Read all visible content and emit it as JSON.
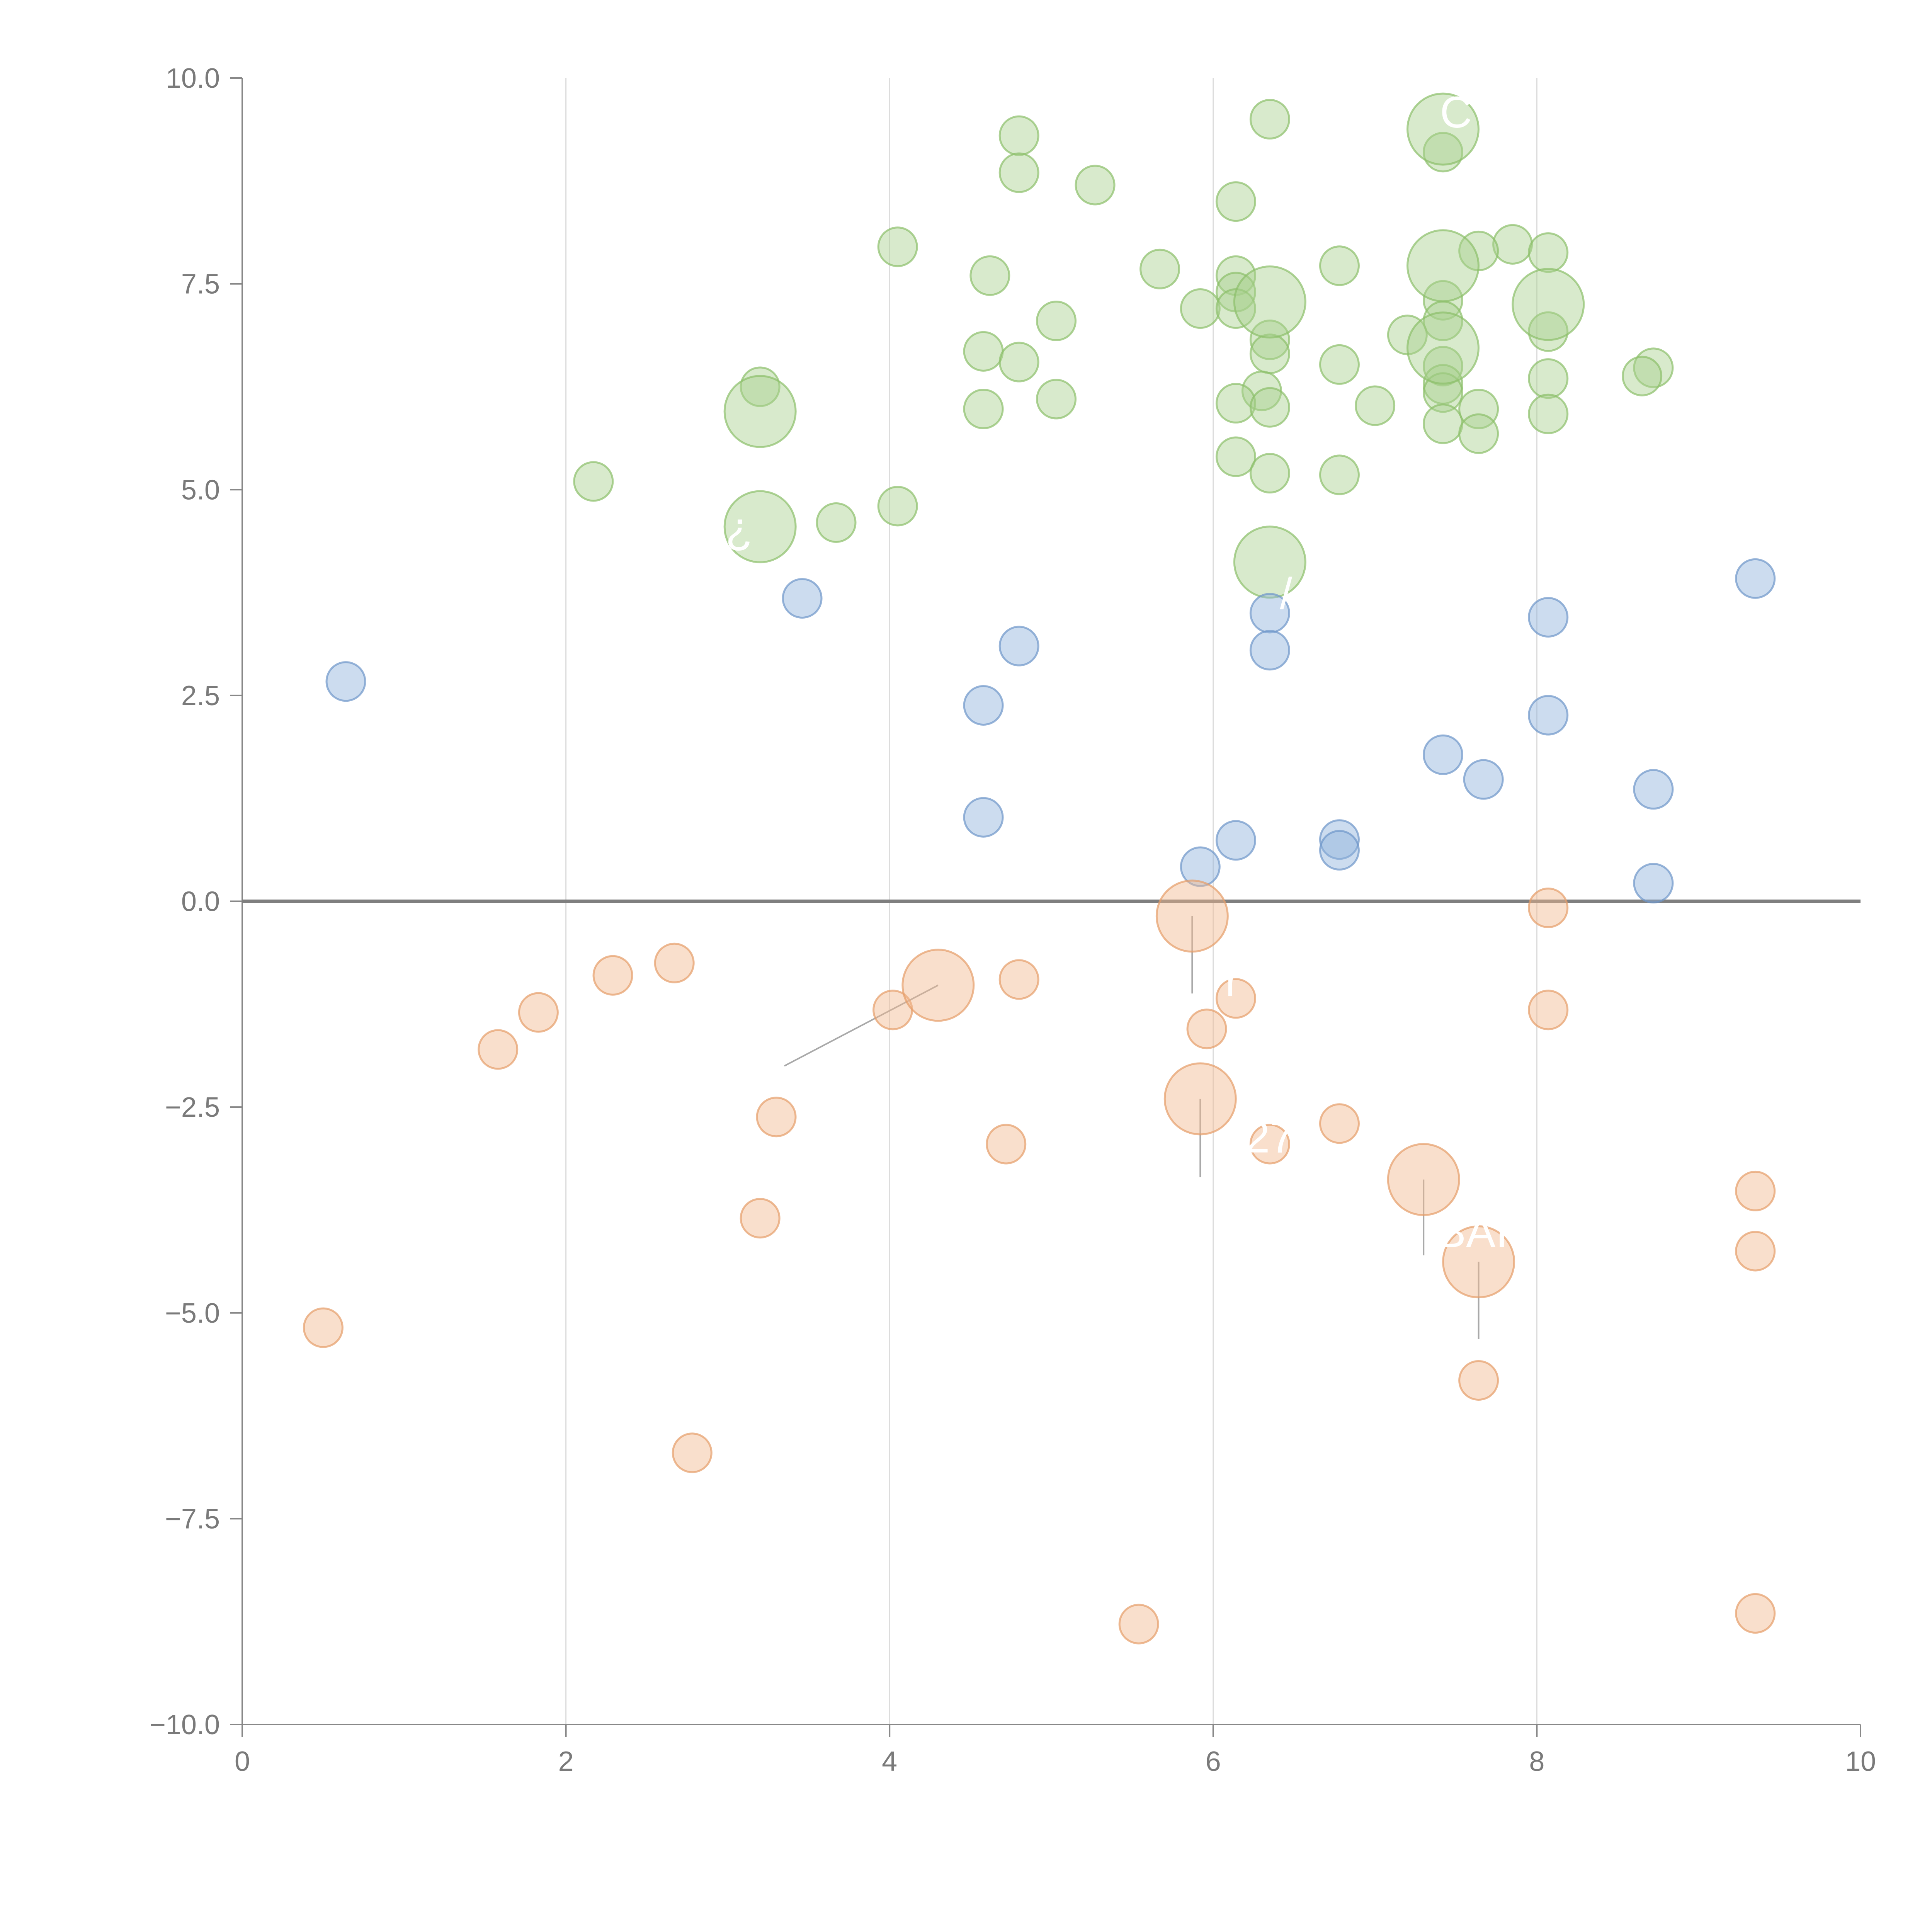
{
  "chart_data": {
    "type": "scatter",
    "title": "",
    "xlabel": "",
    "ylabel": "",
    "xlim": [
      0,
      10
    ],
    "ylim": [
      -10,
      10
    ],
    "x_ticks": [
      0,
      2,
      4,
      6,
      8,
      10
    ],
    "y_ticks": [
      10.0,
      7.5,
      5.0,
      2.5,
      0.0,
      -2.5,
      -5.0,
      -7.5,
      -10.0
    ],
    "x_tick_labels": [
      "0",
      "2",
      "4",
      "6",
      "8",
      "10"
    ],
    "y_tick_labels": [
      "10.0",
      "7.5",
      "5.0",
      "2.5",
      "0.0",
      "−2.5",
      "−5.0",
      "−7.5",
      "−10.0"
    ],
    "grid": {
      "x": true,
      "y": false
    },
    "reference_line": {
      "axis": "y",
      "value": 0
    },
    "marker_opacity": 0.45,
    "series": [
      {
        "color": "#a8d08d",
        "stroke": "#8cbf6a",
        "points": [
          {
            "x": 6.35,
            "y": 9.5
          },
          {
            "x": 7.42,
            "y": 9.1
          },
          {
            "x": 4.8,
            "y": 9.3
          },
          {
            "x": 4.8,
            "y": 8.85
          },
          {
            "x": 5.27,
            "y": 8.7
          },
          {
            "x": 6.14,
            "y": 8.5
          },
          {
            "x": 4.05,
            "y": 7.95
          },
          {
            "x": 7.85,
            "y": 7.98
          },
          {
            "x": 7.64,
            "y": 7.9
          },
          {
            "x": 8.07,
            "y": 7.88
          },
          {
            "x": 4.62,
            "y": 7.6
          },
          {
            "x": 5.67,
            "y": 7.68
          },
          {
            "x": 6.78,
            "y": 7.72
          },
          {
            "x": 6.14,
            "y": 7.6
          },
          {
            "x": 6.14,
            "y": 7.4
          },
          {
            "x": 7.42,
            "y": 7.3
          },
          {
            "x": 5.92,
            "y": 7.2
          },
          {
            "x": 6.14,
            "y": 7.2
          },
          {
            "x": 5.03,
            "y": 7.05
          },
          {
            "x": 7.42,
            "y": 7.05
          },
          {
            "x": 8.07,
            "y": 6.92
          },
          {
            "x": 7.2,
            "y": 6.88
          },
          {
            "x": 6.35,
            "y": 6.82
          },
          {
            "x": 4.58,
            "y": 6.68
          },
          {
            "x": 6.35,
            "y": 6.65
          },
          {
            "x": 4.8,
            "y": 6.55
          },
          {
            "x": 6.78,
            "y": 6.52
          },
          {
            "x": 7.42,
            "y": 6.5
          },
          {
            "x": 8.72,
            "y": 6.48
          },
          {
            "x": 8.65,
            "y": 6.38
          },
          {
            "x": 8.07,
            "y": 6.35
          },
          {
            "x": 7.42,
            "y": 6.28
          },
          {
            "x": 3.2,
            "y": 6.25
          },
          {
            "x": 7.42,
            "y": 6.18
          },
          {
            "x": 6.3,
            "y": 6.2
          },
          {
            "x": 5.03,
            "y": 6.1
          },
          {
            "x": 6.14,
            "y": 6.05
          },
          {
            "x": 7.0,
            "y": 6.02
          },
          {
            "x": 6.35,
            "y": 6.0
          },
          {
            "x": 7.64,
            "y": 5.98
          },
          {
            "x": 4.58,
            "y": 5.98
          },
          {
            "x": 8.07,
            "y": 5.92
          },
          {
            "x": 7.42,
            "y": 5.8
          },
          {
            "x": 7.64,
            "y": 5.68
          },
          {
            "x": 6.14,
            "y": 5.4
          },
          {
            "x": 6.35,
            "y": 5.2
          },
          {
            "x": 6.78,
            "y": 5.18
          },
          {
            "x": 2.17,
            "y": 5.1
          },
          {
            "x": 4.05,
            "y": 4.8
          },
          {
            "x": 3.67,
            "y": 4.6
          }
        ],
        "large_points": [
          {
            "x": 7.42,
            "y": 9.38
          },
          {
            "x": 7.42,
            "y": 7.72
          },
          {
            "x": 6.35,
            "y": 7.28
          },
          {
            "x": 8.07,
            "y": 7.25
          },
          {
            "x": 7.42,
            "y": 6.72
          },
          {
            "x": 3.2,
            "y": 5.95
          },
          {
            "x": 3.2,
            "y": 4.55
          },
          {
            "x": 6.35,
            "y": 4.12
          }
        ]
      },
      {
        "color": "#8fb1db",
        "stroke": "#6d96c9",
        "points": [
          {
            "x": 9.35,
            "y": 3.92
          },
          {
            "x": 3.46,
            "y": 3.68
          },
          {
            "x": 6.35,
            "y": 3.5
          },
          {
            "x": 8.07,
            "y": 3.45
          },
          {
            "x": 4.8,
            "y": 3.1
          },
          {
            "x": 6.35,
            "y": 3.05
          },
          {
            "x": 0.64,
            "y": 2.67
          },
          {
            "x": 4.58,
            "y": 2.38
          },
          {
            "x": 8.07,
            "y": 2.26
          },
          {
            "x": 7.42,
            "y": 1.78
          },
          {
            "x": 7.67,
            "y": 1.48
          },
          {
            "x": 8.72,
            "y": 1.36
          },
          {
            "x": 4.58,
            "y": 1.02
          },
          {
            "x": 6.78,
            "y": 0.75
          },
          {
            "x": 6.14,
            "y": 0.74
          },
          {
            "x": 6.78,
            "y": 0.62
          },
          {
            "x": 5.92,
            "y": 0.42
          },
          {
            "x": 8.72,
            "y": 0.22
          }
        ],
        "large_points": []
      },
      {
        "color": "#f2b98f",
        "stroke": "#e59c68",
        "points": [
          {
            "x": 8.07,
            "y": -0.08
          },
          {
            "x": 2.67,
            "y": -0.75
          },
          {
            "x": 2.29,
            "y": -0.9
          },
          {
            "x": 4.8,
            "y": -0.95
          },
          {
            "x": 6.14,
            "y": -1.18
          },
          {
            "x": 1.83,
            "y": -1.35
          },
          {
            "x": 4.02,
            "y": -1.32
          },
          {
            "x": 8.07,
            "y": -1.32
          },
          {
            "x": 5.96,
            "y": -1.55
          },
          {
            "x": 1.58,
            "y": -1.8
          },
          {
            "x": 3.3,
            "y": -2.62
          },
          {
            "x": 6.78,
            "y": -2.7
          },
          {
            "x": 6.35,
            "y": -2.95
          },
          {
            "x": 4.72,
            "y": -2.95
          },
          {
            "x": 9.35,
            "y": -3.52
          },
          {
            "x": 3.2,
            "y": -3.85
          },
          {
            "x": 9.35,
            "y": -4.25
          },
          {
            "x": 0.5,
            "y": -5.18
          },
          {
            "x": 7.64,
            "y": -5.82
          },
          {
            "x": 2.78,
            "y": -6.7
          },
          {
            "x": 9.35,
            "y": -8.65
          },
          {
            "x": 5.54,
            "y": -8.78
          }
        ],
        "large_points": [
          {
            "x": 5.87,
            "y": -0.18
          },
          {
            "x": 4.3,
            "y": -1.02
          },
          {
            "x": 5.92,
            "y": -2.4
          },
          {
            "x": 7.3,
            "y": -3.38
          },
          {
            "x": 7.64,
            "y": -4.38
          }
        ]
      }
    ],
    "labels": [
      {
        "text": "¿",
        "x": 3.07,
        "y": 4.35
      },
      {
        "text": "/",
        "x": 6.45,
        "y": 3.55
      },
      {
        "text": "C",
        "x": 7.5,
        "y": 9.4
      },
      {
        "text": "BAI",
        "x": 7.6,
        "y": -4.2
      },
      {
        "text": "27",
        "x": 6.35,
        "y": -3.05
      },
      {
        "text": "r",
        "x": 6.12,
        "y": -1.15
      }
    ]
  }
}
